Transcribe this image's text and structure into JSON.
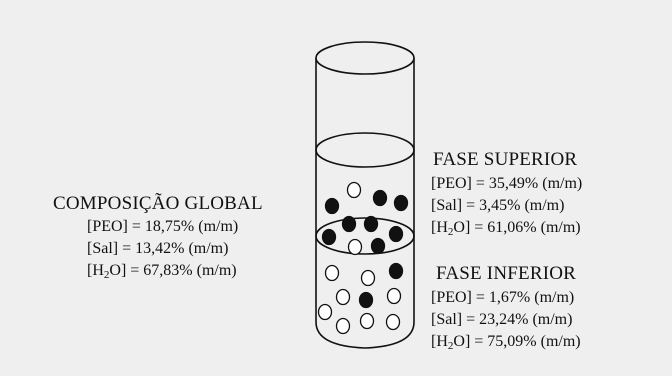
{
  "global": {
    "title": "COMPOSIÇÃO GLOBAL",
    "peo": "[PEO] = 18,75% (m/m)",
    "sal": "[Sal] = 13,42% (m/m)",
    "h2o_prefix": "[H",
    "h2o_sub": "2",
    "h2o_suffix": "O] = 67,83% (m/m)"
  },
  "upper": {
    "title": "FASE SUPERIOR",
    "peo": "[PEO] = 35,49% (m/m)",
    "sal": "[Sal] = 3,45% (m/m)",
    "h2o_prefix": "[H",
    "h2o_sub": "2",
    "h2o_suffix": "O] = 61,06% (m/m)"
  },
  "lower": {
    "title": "FASE INFERIOR",
    "peo": "[PEO] = 1,67% (m/m)",
    "sal": "[Sal] = 23,24% (m/m)",
    "h2o_prefix": "[H",
    "h2o_sub": "2",
    "h2o_suffix": "O] = 75,09% (m/m)"
  },
  "colors": {
    "background": "#efefef",
    "ink": "#111111",
    "filled_particle": "#111111",
    "empty_particle": "#ffffff"
  }
}
